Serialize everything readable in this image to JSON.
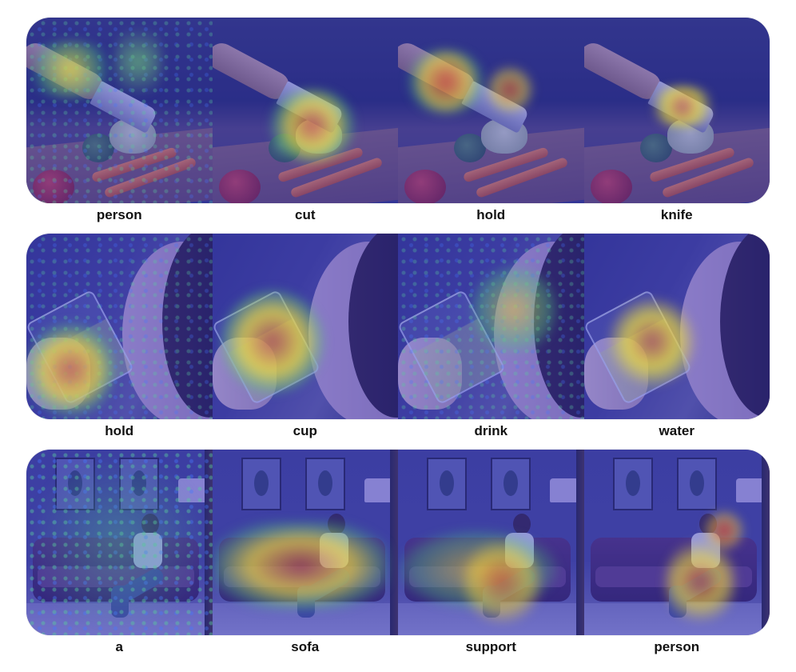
{
  "rows": [
    {
      "labels": [
        "person",
        "cut",
        "hold",
        "knife"
      ]
    },
    {
      "labels": [
        "hold",
        "cup",
        "drink",
        "water"
      ]
    },
    {
      "labels": [
        "a",
        "sofa",
        "support",
        "person"
      ]
    }
  ],
  "colors": {
    "overlay": "#3a3ac8",
    "heat_high": "#e03030",
    "heat_mid": "#f0e030",
    "heat_low": "#40c080"
  }
}
